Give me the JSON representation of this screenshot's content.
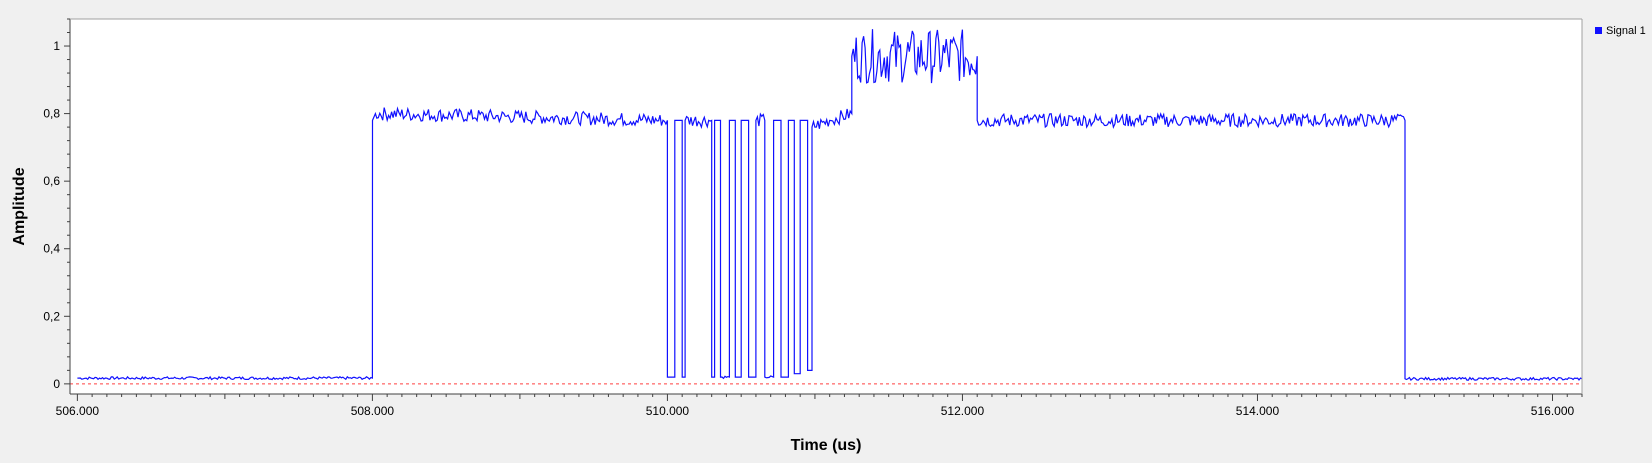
{
  "chart_data": {
    "type": "line",
    "xlabel": "Time (us)",
    "ylabel": "Amplitude",
    "xlim": [
      505.95,
      516.2
    ],
    "ylim": [
      -0.03,
      1.08
    ],
    "x_ticks": [
      "506.000",
      "508.000",
      "510.000",
      "512.000",
      "514.000",
      "516.000"
    ],
    "x_tick_values": [
      506,
      508,
      510,
      512,
      514,
      516
    ],
    "y_ticks": [
      "0",
      "0,2",
      "0,4",
      "0,6",
      "0,8",
      "1"
    ],
    "y_tick_values": [
      0,
      0.2,
      0.4,
      0.6,
      0.8,
      1.0
    ],
    "grid": false,
    "legend_position": "top-right",
    "reference_line": {
      "y": 0,
      "style": "dashed",
      "color": "#ff4040"
    },
    "series": [
      {
        "name": "Signal 1",
        "color": "#1010ff",
        "points": [
          [
            506.0,
            0.017
          ],
          [
            508.0,
            0.017
          ],
          [
            508.001,
            0.78
          ],
          [
            508.02,
            0.8
          ],
          [
            510.0,
            0.78
          ],
          [
            510.0,
            0.02
          ],
          [
            510.05,
            0.02
          ],
          [
            510.05,
            0.78
          ],
          [
            510.1,
            0.78
          ],
          [
            510.1,
            0.02
          ],
          [
            510.12,
            0.02
          ],
          [
            510.12,
            0.78
          ],
          [
            510.3,
            0.78
          ],
          [
            510.3,
            0.02
          ],
          [
            510.32,
            0.02
          ],
          [
            510.32,
            0.78
          ],
          [
            510.36,
            0.78
          ],
          [
            510.36,
            0.02
          ],
          [
            510.42,
            0.02
          ],
          [
            510.42,
            0.78
          ],
          [
            510.46,
            0.78
          ],
          [
            510.46,
            0.02
          ],
          [
            510.5,
            0.02
          ],
          [
            510.5,
            0.78
          ],
          [
            510.55,
            0.78
          ],
          [
            510.55,
            0.02
          ],
          [
            510.6,
            0.02
          ],
          [
            510.6,
            0.78
          ],
          [
            510.66,
            0.78
          ],
          [
            510.66,
            0.02
          ],
          [
            510.72,
            0.02
          ],
          [
            510.72,
            0.78
          ],
          [
            510.77,
            0.78
          ],
          [
            510.77,
            0.02
          ],
          [
            510.82,
            0.02
          ],
          [
            510.82,
            0.78
          ],
          [
            510.86,
            0.78
          ],
          [
            510.86,
            0.03
          ],
          [
            510.9,
            0.03
          ],
          [
            510.9,
            0.78
          ],
          [
            510.95,
            0.78
          ],
          [
            510.95,
            0.04
          ],
          [
            510.98,
            0.04
          ],
          [
            510.98,
            0.76
          ],
          [
            511.1,
            0.78
          ],
          [
            511.25,
            0.8
          ],
          [
            511.25,
            0.97
          ],
          [
            512.1,
            0.97
          ],
          [
            512.1,
            0.78
          ],
          [
            515.0,
            0.78
          ],
          [
            515.0,
            0.015
          ],
          [
            516.2,
            0.015
          ]
        ]
      }
    ]
  }
}
